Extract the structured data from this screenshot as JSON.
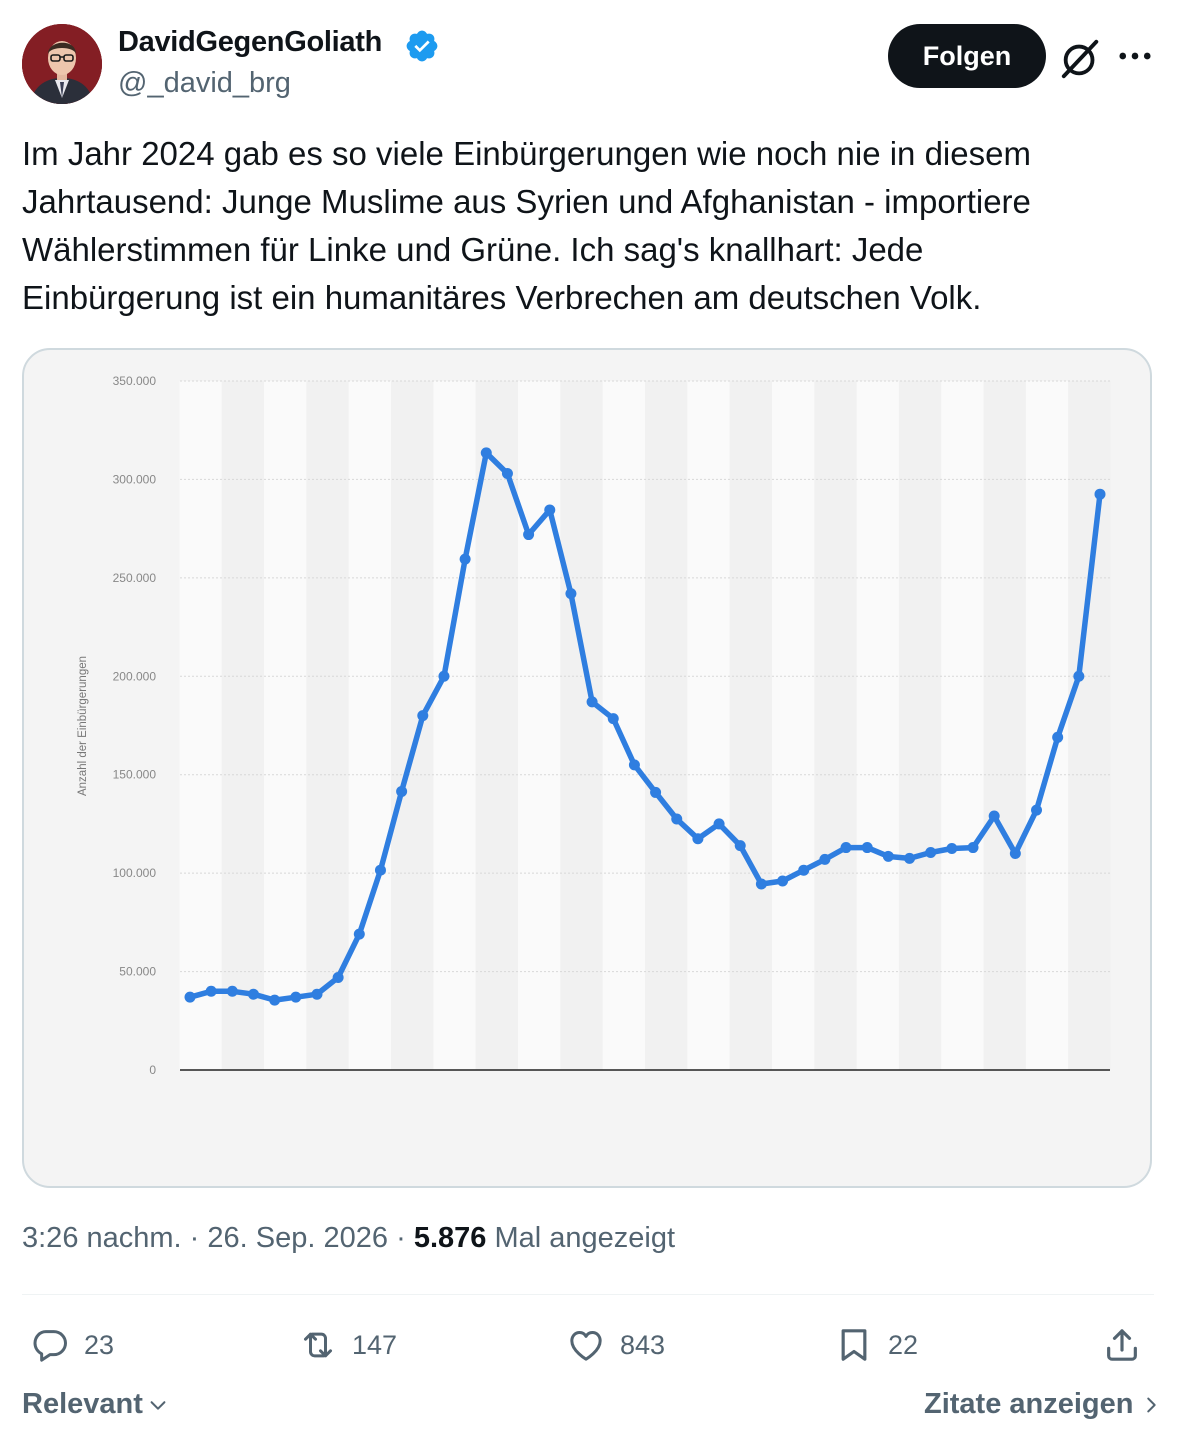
{
  "author": {
    "display_name": "DavidGegenGoliath",
    "handle": "@_david_brg",
    "verified": true,
    "verified_icon": "verified-badge-icon"
  },
  "header": {
    "follow_label": "Folgen",
    "grok_icon": "grok-icon",
    "more_icon": "more-icon"
  },
  "tweet": {
    "text": "Im Jahr 2024 gab es so viele Einbürgerungen wie noch nie in diesem\nJahrtausend: Junge Muslime aus Syrien und Afghanistan - importiere\nWählerstimmen für Linke und Grüne. Ich sag's knallhart: Jede\nEinbürgerung ist ein humanitäres Verbrechen am deutschen Volk."
  },
  "meta": {
    "time": "3:26 nachm.",
    "separator": "·",
    "date": "26. Sep. 2026",
    "views_count": "5.876",
    "views_label": "Mal angezeigt"
  },
  "actions": {
    "reply": {
      "icon": "reply-icon",
      "count": "23"
    },
    "retweet": {
      "icon": "retweet-icon",
      "count": "147"
    },
    "like": {
      "icon": "like-icon",
      "count": "843"
    },
    "bookmark": {
      "icon": "bookmark-icon",
      "count": "22"
    },
    "share": {
      "icon": "share-icon"
    }
  },
  "footer": {
    "sort_label": "Relevant",
    "quotes_label": "Zitate anzeigen"
  },
  "chart_data": {
    "type": "line",
    "ylabel": "Anzahl der Einbürgerungen",
    "yticks": [
      "0",
      "50.000",
      "100.000",
      "150.000",
      "200.000",
      "250.000",
      "300.000",
      "350.000"
    ],
    "ylim": [
      0,
      350000
    ],
    "grid": true,
    "series_color": "#2f7ee0",
    "series": [
      {
        "values": [
          37000,
          40000,
          40000,
          38500,
          35500,
          37000,
          38500,
          47000,
          69000,
          101500,
          141500,
          180000,
          200000,
          259500,
          313500,
          303000,
          272000,
          284500,
          242000,
          187000,
          178500,
          155000,
          141000,
          127500,
          117500,
          125000,
          114000,
          94500,
          96000,
          101500,
          107000,
          113000,
          113000,
          108500,
          107500,
          110500,
          112500,
          113000,
          129000,
          110000,
          132000,
          169000,
          200000,
          292500
        ]
      }
    ]
  }
}
